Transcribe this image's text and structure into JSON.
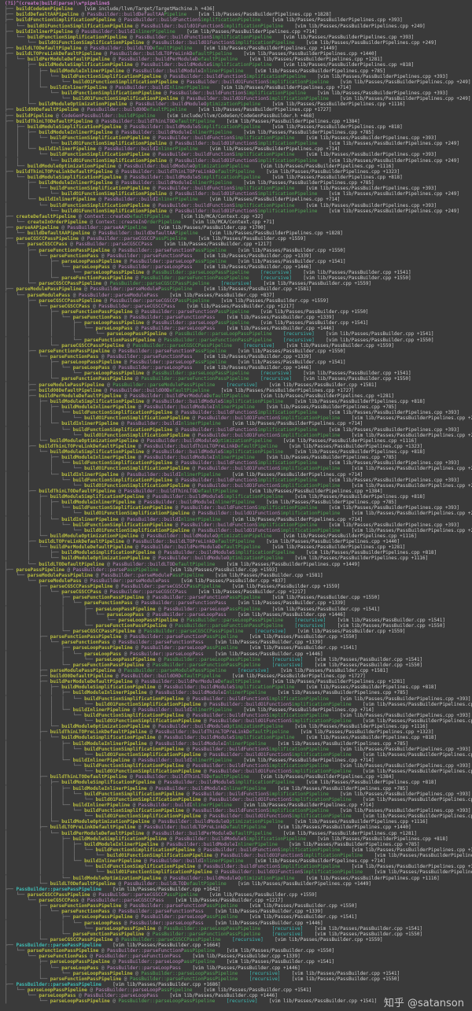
{
  "colors": {
    "bg": "#3a3a3a",
    "name": "#b9bd3f",
    "qual": "#bd8bbd",
    "match": "#54a857",
    "recursive": "#3fbcb4",
    "ref": "#cfcfcf",
    "guide": "#9a9a9a",
    "title": "#c678c6",
    "watermark": "#d9d9d9"
  },
  "header": {
    "regex": "(?i)^(create|build|parse)\\w*pipeline$"
  },
  "watermark": {
    "text": "知乎 @satanson"
  },
  "recursive_badge": "[recursive]",
  "ref_format": {
    "prefix": "[vim ",
    "line_prefix": " +",
    "suffix": "]"
  },
  "fns": {
    "CG": {
      "name": "buildCodeGenPipeline",
      "file": "include/llvm/Target/TargetMachine.h",
      "line": 436
    },
    "AA": {
      "name": "buildDefaultAAPipeline",
      "qual": "PassBuilder::buildDefaultAAPipeline",
      "file": "lib/Passes/PassBuilderPipelines.cpp",
      "line": 1828
    },
    "FSP": {
      "name": "buildFunctionSimplificationPipeline",
      "qual": "PassBuilder::buildFunctionSimplificationPipeline",
      "file": "lib/Passes/PassBuilderPipelines.cpp",
      "line": 393
    },
    "O1": {
      "name": "buildO1FunctionSimplificationPipeline",
      "qual": "PassBuilder::buildO1FunctionSimplificationPipeline",
      "file": "lib/Passes/PassBuilderPipelines.cpp",
      "line": 249
    },
    "INL": {
      "name": "buildInlinerPipeline",
      "qual": "PassBuilder::buildInlinerPipeline",
      "file": "lib/Passes/PassBuilderPipelines.cpp",
      "line": 714
    },
    "MINL": {
      "name": "buildModuleInlinerPipeline",
      "qual": "PassBuilder::buildModuleInlinerPipeline",
      "file": "lib/Passes/PassBuilderPipelines.cpp",
      "line": 785
    },
    "MSP": {
      "name": "buildModuleSimplificationPipeline",
      "qual": "PassBuilder::buildModuleSimplificationPipeline",
      "file": "lib/Passes/PassBuilderPipelines.cpp",
      "line": 818
    },
    "MOP": {
      "name": "buildModuleOptimizationPipeline",
      "qual": "PassBuilder::buildModuleOptimizationPipeline",
      "file": "lib/Passes/PassBuilderPipelines.cpp",
      "line": 1116
    },
    "PMD": {
      "name": "buildPerModuleDefaultPipeline",
      "qual": "PassBuilder::buildPerModuleDefaultPipeline",
      "file": "lib/Passes/PassBuilderPipelines.cpp",
      "line": 1281
    },
    "TLD": {
      "name": "buildThinLTODefaultPipeline",
      "qual": "PassBuilder::buildThinLTODefaultPipeline",
      "file": "lib/Passes/PassBuilderPipelines.cpp",
      "line": 1384
    },
    "TLPL": {
      "name": "buildThinLTOPreLinkDefaultPipeline",
      "qual": "PassBuilder::buildThinLTOPreLinkDefaultPipeline",
      "file": "lib/Passes/PassBuilderPipelines.cpp",
      "line": 1323
    },
    "LTD": {
      "name": "buildLTODefaultPipeline",
      "qual": "PassBuilder::buildLTODefaultPipeline",
      "file": "lib/Passes/PassBuilderPipelines.cpp",
      "line": 1449
    },
    "LTPL": {
      "name": "buildLTOPreLinkDefaultPipeline",
      "qual": "PassBuilder::buildLTOPreLinkDefaultPipeline",
      "file": "lib/Passes/PassBuilderPipelines.cpp",
      "line": 1440
    },
    "O0": {
      "name": "buildO0DefaultPipeline",
      "qual": "PassBuilder::buildO0DefaultPipeline",
      "file": "lib/Passes/PassBuilderPipelines.cpp",
      "line": 1727
    },
    "BP": {
      "name": "buildPipeline",
      "qual": "CodeGenPassBuilder::buildPipeline",
      "file": "include/llvm/CodeGen/CodeGenPassBuilder.h",
      "line": 468
    },
    "CRD": {
      "name": "createDefaultPipeline",
      "qual": "Context::createDefaultPipeline",
      "file": "lib/MCA/Context.cpp",
      "line": 32
    },
    "CRI": {
      "name": "createInOrderPipeline",
      "qual": "Context::createInOrderPipeline",
      "file": "lib/MCA/Context.cpp",
      "line": 71
    },
    "PAA": {
      "name": "parseAAPipeline",
      "qual": "PassBuilder::parseAAPipeline",
      "file": "lib/Passes/PassBuilder.cpp",
      "line": 1700
    },
    "PCGPP": {
      "name": "parseCGSCCPassPipeline",
      "qual": "PassBuilder::parseCGSCCPassPipeline",
      "file": "lib/Passes/PassBuilder.cpp",
      "line": 1559
    },
    "PCG": {
      "name": "parseCGSCCPass",
      "qual": "PassBuilder::parseCGSCCPass",
      "file": "lib/Passes/PassBuilder.cpp",
      "line": 1217
    },
    "PFPP": {
      "name": "parseFunctionPassPipeline",
      "qual": "PassBuilder::parseFunctionPassPipeline",
      "file": "lib/Passes/PassBuilder.cpp",
      "line": 1550
    },
    "PFP": {
      "name": "parseFunctionPass",
      "qual": "PassBuilder::parseFunctionPass",
      "file": "lib/Passes/PassBuilder.cpp",
      "line": 1339
    },
    "PLPP": {
      "name": "parseLoopPassPipeline",
      "qual": "PassBuilder::parseLoopPassPipeline",
      "file": "lib/Passes/PassBuilder.cpp",
      "line": 1541
    },
    "PLP": {
      "name": "parseLoopPass",
      "qual": "PassBuilder::parseLoopPass",
      "file": "lib/Passes/PassBuilder.cpp",
      "line": 1446
    },
    "PMPP": {
      "name": "parseModulePassPipeline",
      "qual": "PassBuilder::parseModulePassPipeline",
      "file": "lib/Passes/PassBuilder.cpp",
      "line": 1581
    },
    "PMP": {
      "name": "parseModulePass",
      "qual": "PassBuilder::parseModulePass",
      "file": "lib/Passes/PassBuilder.cpp",
      "line": 837
    },
    "PPP": {
      "name": "parsePassPipeline",
      "qual": "PassBuilder::parsePassPipeline",
      "file": "lib/Passes/PassBuilder.cpp",
      "line": 1593
    },
    "PPP2": {
      "name": "PassBuilder::parsePassPipeline",
      "qonly": true,
      "file": "lib/Passes/PassBuilder.cpp",
      "line": 1642
    },
    "PPP3": {
      "name": "PassBuilder::parsePassPipeline",
      "qonly": true,
      "file": "lib/Passes/PassBuilder.cpp",
      "line": 1664
    },
    "PPP4": {
      "name": "PassBuilder::parsePassPipeline",
      "qonly": true,
      "file": "lib/Passes/PassBuilder.cpp",
      "line": 1686
    }
  },
  "subtrees": {
    "FSP_T": {
      "fn": "FSP",
      "kids": [
        {
          "fn": "O1"
        }
      ]
    },
    "INL_T": {
      "fn": "INL",
      "kids": [
        {
          "sub": "FSP_T"
        }
      ]
    },
    "MINL_T": {
      "fn": "MINL",
      "kids": [
        {
          "sub": "FSP_T"
        }
      ]
    },
    "MSP_T": {
      "fn": "MSP",
      "kids": [
        {
          "sub": "MINL_T"
        },
        {
          "sub": "INL_T"
        }
      ]
    },
    "PMD_T": {
      "fn": "PMD",
      "kids": [
        {
          "sub": "MSP_T"
        },
        {
          "fn": "MOP"
        }
      ]
    },
    "TLPL_T": {
      "fn": "TLPL",
      "kids": [
        {
          "sub": "MSP_T"
        }
      ]
    },
    "TLD_T": {
      "fn": "TLD",
      "kids": [
        {
          "sub": "MSP_T"
        },
        {
          "fn": "MOP"
        }
      ]
    },
    "LTPL_T": {
      "fn": "LTPL",
      "kids": [
        {
          "sub": "PMD_T"
        }
      ]
    },
    "LPP_BLOCK": {
      "fn": "PLPP",
      "kids": [
        {
          "fn": "PLP",
          "kids": [
            {
              "fn": "PLPP",
              "rec": true
            }
          ]
        }
      ]
    },
    "FPP_BLOCK": {
      "fn": "PFPP",
      "kids": [
        {
          "fn": "PFP",
          "kids": [
            {
              "sub": "LPP_BLOCK"
            },
            {
              "fn": "PFPP",
              "rec": true
            }
          ]
        }
      ]
    },
    "CG_BLOCK": {
      "fn": "PCGPP",
      "kids": [
        {
          "fn": "PCG",
          "kids": [
            {
              "sub": "FPP_BLOCK"
            },
            {
              "fn": "PCGPP",
              "rec": true
            }
          ]
        }
      ]
    }
  },
  "tree": [
    {
      "fn": "CG"
    },
    {
      "fn": "AA"
    },
    {
      "sub": "FSP_T"
    },
    {
      "sub": "INL_T"
    },
    {
      "fn": "LTD"
    },
    {
      "sub": "LTPL_T"
    },
    {
      "fn": "O0"
    },
    {
      "fn": "BP"
    },
    {
      "sub": "TLD_T"
    },
    {
      "sub": "TLPL_T"
    },
    {
      "fn": "CRD",
      "kids": [
        {
          "fn": "CRI"
        }
      ]
    },
    {
      "fn": "PAA",
      "kids": [
        {
          "fn": "AA"
        }
      ]
    },
    {
      "sub": "CG_BLOCK"
    },
    {
      "fn": "PMPP",
      "kids": [
        {
          "fn": "PMP",
          "kids": [
            {
              "sub": "CG_BLOCK"
            },
            {
              "sub": "FPP_BLOCK"
            },
            {
              "fn": "PMPP",
              "rec": true
            },
            {
              "fn": "O0"
            },
            {
              "sub": "PMD_T"
            },
            {
              "sub": "TLPL_T"
            },
            {
              "sub": "TLD_T"
            },
            {
              "fn": "LTPL",
              "kids": [
                {
                  "fn": "PMD",
                  "kids": [
                    {
                      "fn": "MSP"
                    },
                    {
                      "fn": "MOP"
                    }
                  ]
                }
              ]
            },
            {
              "fn": "LTD"
            }
          ]
        }
      ]
    },
    {
      "fn": "PPP",
      "kids": [
        {
          "fn": "PMPP",
          "kids": [
            {
              "fn": "PMP",
              "kids": [
                {
                  "sub": "CG_BLOCK"
                },
                {
                  "sub": "FPP_BLOCK"
                },
                {
                  "fn": "PMPP",
                  "rec": true
                },
                {
                  "fn": "O0"
                },
                {
                  "sub": "PMD_T"
                },
                {
                  "sub": "TLPL_T"
                },
                {
                  "sub": "TLD_T"
                },
                {
                  "sub": "LTPL_T"
                },
                {
                  "fn": "LTD"
                }
              ]
            }
          ]
        }
      ]
    },
    {
      "fn": "PPP2",
      "kids": [
        {
          "sub": "CG_BLOCK"
        }
      ]
    },
    {
      "fn": "PPP3",
      "kids": [
        {
          "sub": "FPP_BLOCK"
        }
      ]
    },
    {
      "fn": "PPP4",
      "kids": [
        {
          "sub": "LPP_BLOCK"
        }
      ]
    }
  ]
}
